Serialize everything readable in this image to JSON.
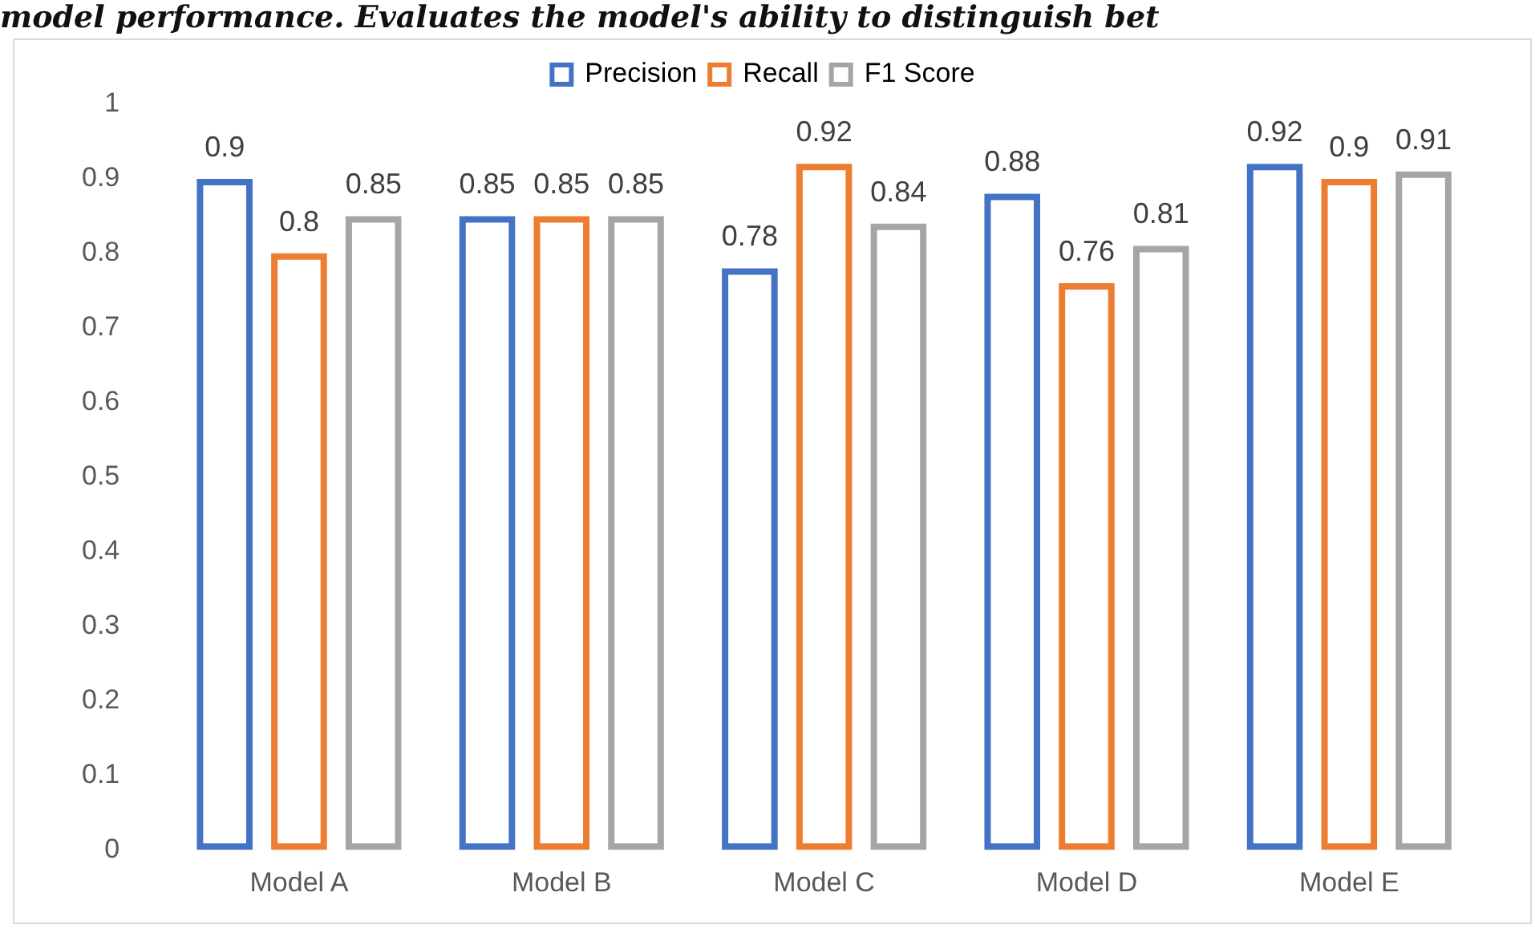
{
  "chart_data": {
    "type": "bar",
    "annotations": [
      "model performance. Evaluates the model's ability to distinguish bet"
    ],
    "categories": [
      "Model A",
      "Model B",
      "Model C",
      "Model D",
      "Model E"
    ],
    "series": [
      {
        "name": "Precision",
        "color": "#4472c4",
        "values": [
          0.9,
          0.85,
          0.78,
          0.88,
          0.92
        ]
      },
      {
        "name": "Recall",
        "color": "#ed7d31",
        "values": [
          0.8,
          0.85,
          0.92,
          0.76,
          0.9
        ]
      },
      {
        "name": "F1 Score",
        "color": "#a5a5a5",
        "values": [
          0.85,
          0.85,
          0.84,
          0.81,
          0.91
        ]
      }
    ],
    "ylim": [
      0,
      1
    ],
    "yticks": [
      0,
      0.1,
      0.2,
      0.3,
      0.4,
      0.5,
      0.6,
      0.7,
      0.8,
      0.9,
      1
    ],
    "grid": false,
    "legend": "top",
    "data_labels": true
  }
}
